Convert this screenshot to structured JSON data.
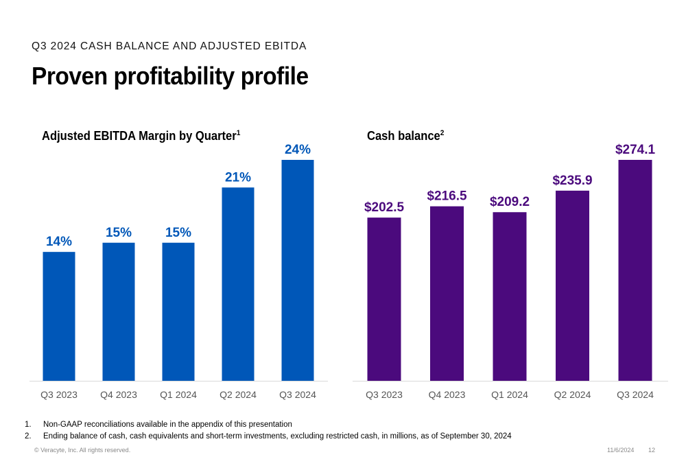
{
  "header": {
    "eyebrow": "Q3 2024 CASH BALANCE AND ADJUSTED EBITDA",
    "title": "Proven profitability profile"
  },
  "chart_data": [
    {
      "type": "bar",
      "title": "Adjusted EBITDA Margin by Quarter",
      "title_superscript": "1",
      "categories": [
        "Q3 2023",
        "Q4 2023",
        "Q1 2024",
        "Q2 2024",
        "Q3 2024"
      ],
      "values": [
        14,
        15,
        15,
        21,
        24
      ],
      "data_labels": [
        "14%",
        "15%",
        "15%",
        "21%",
        "24%"
      ],
      "ylim": [
        0,
        24
      ],
      "color": "#0057b8",
      "grid": false,
      "legend": "none"
    },
    {
      "type": "bar",
      "title": "Cash balance",
      "title_superscript": "2",
      "categories": [
        "Q3 2023",
        "Q4 2023",
        "Q1 2024",
        "Q2 2024",
        "Q3 2024"
      ],
      "values": [
        202.5,
        216.5,
        209.2,
        235.9,
        274.1
      ],
      "data_labels": [
        "$202.5",
        "$216.5",
        "$209.2",
        "$235.9",
        "$274.1"
      ],
      "ylim": [
        0,
        274.1
      ],
      "color": "#4b0a7d",
      "grid": false,
      "legend": "none"
    }
  ],
  "footnotes": [
    {
      "num": "1.",
      "text": "Non-GAAP reconciliations available in the appendix of this presentation"
    },
    {
      "num": "2.",
      "text": "Ending balance of cash, cash equivalents and short-term investments, excluding restricted cash, in millions, as of September 30, 2024"
    }
  ],
  "footer": {
    "copyright": "© Veracyte, Inc.  All rights reserved.",
    "date": "11/6/2024",
    "page": "12"
  }
}
